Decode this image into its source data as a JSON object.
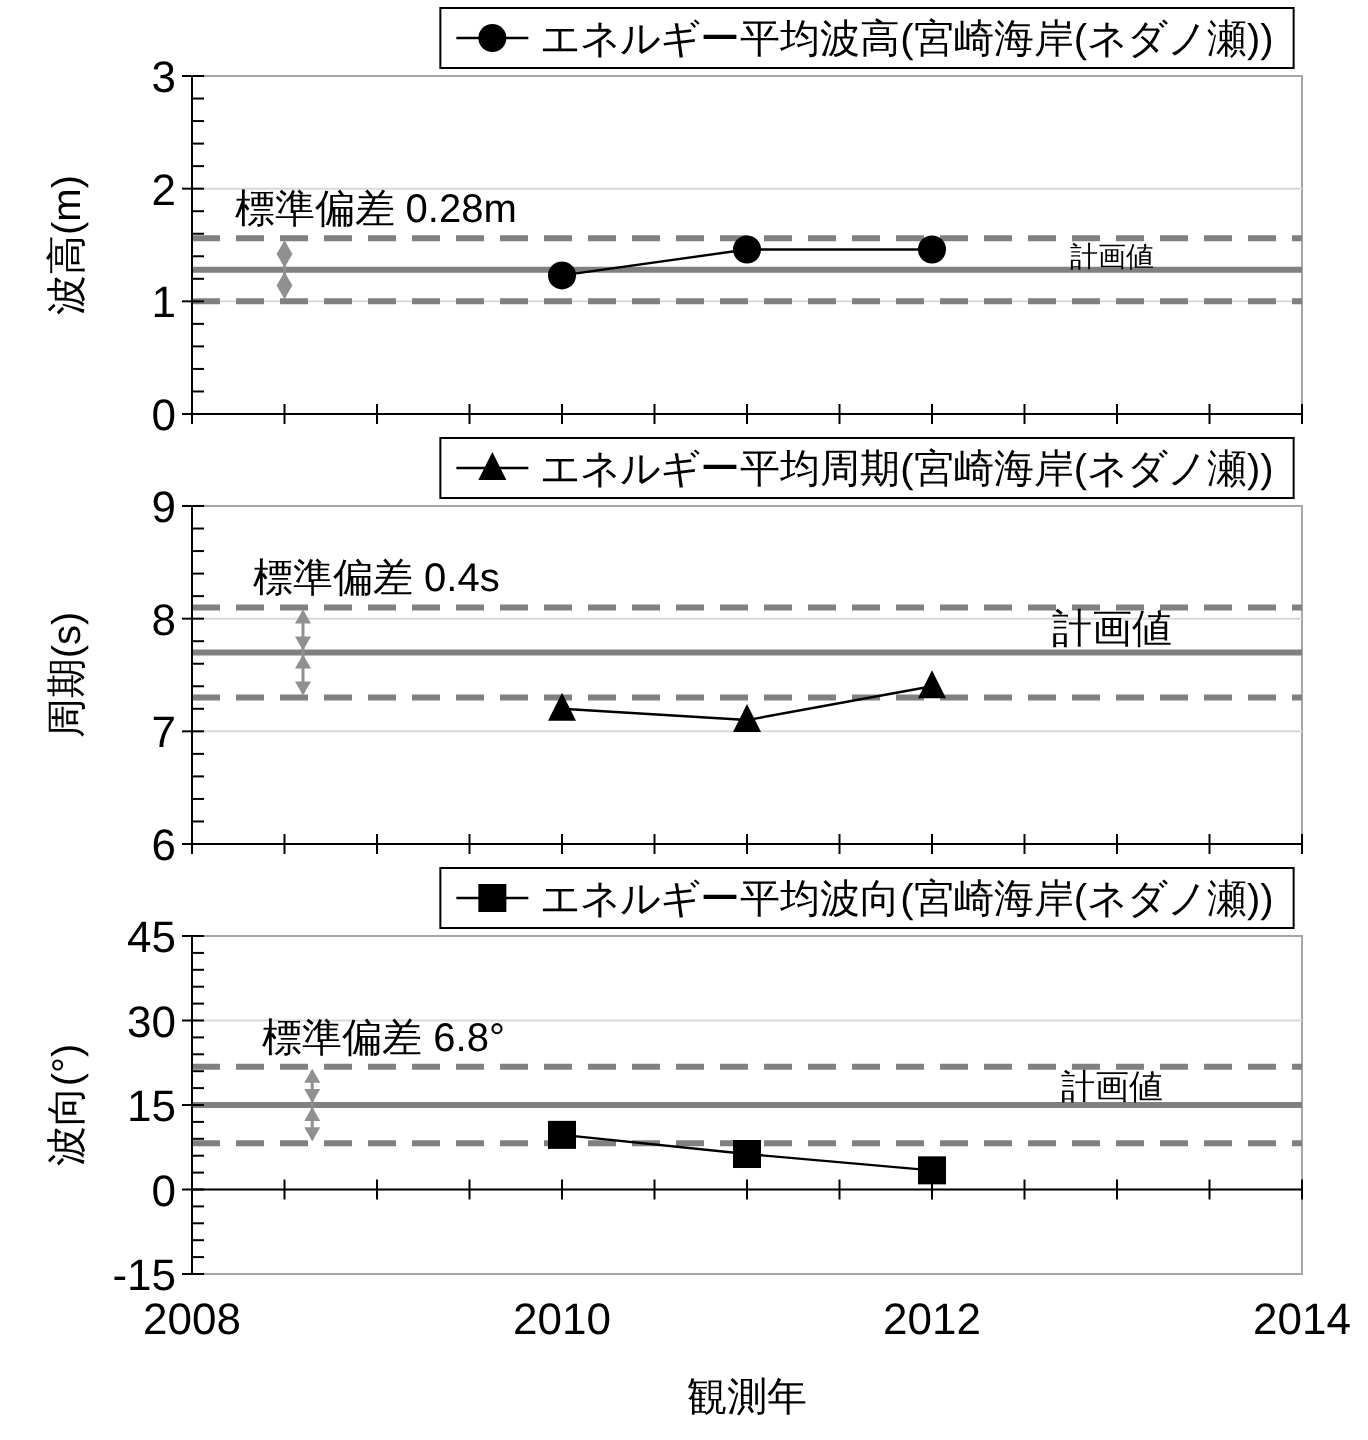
{
  "chart_data": [
    {
      "type": "line",
      "ylabel": "波高(m)",
      "x": [
        2010,
        2011,
        2012
      ],
      "series": [
        {
          "name": "エネルギー平均波高(宮崎海岸(ネダノ瀬))",
          "color": "#000000",
          "values": [
            1.23,
            1.46,
            1.46
          ]
        }
      ],
      "marker": "circle",
      "line_style": "solid",
      "legend": "top",
      "grid": "y",
      "tick_labels": "y",
      "xlim": [
        2008,
        2014
      ],
      "xticks": [
        2008,
        {
          "value": 2008.5,
          "label": null
        },
        {
          "value": 2009,
          "label": null
        },
        {
          "value": 2009.5,
          "label": null
        },
        2010,
        {
          "value": 2010.5,
          "label": null
        },
        {
          "value": 2011,
          "label": null
        },
        {
          "value": 2011.5,
          "label": null
        },
        2012,
        {
          "value": 2012.5,
          "label": null
        },
        {
          "value": 2013,
          "label": null
        },
        {
          "value": 2013.5,
          "label": null
        },
        2014
      ],
      "ylim": [
        0,
        3
      ],
      "yticks": [
        0,
        {
          "value": 0.2,
          "label": null
        },
        {
          "value": 0.4,
          "label": null
        },
        {
          "value": 0.6,
          "label": null
        },
        {
          "value": 0.8,
          "label": null
        },
        1,
        {
          "value": 1.2,
          "label": null
        },
        {
          "value": 1.4,
          "label": null
        },
        {
          "value": 1.6,
          "label": null
        },
        {
          "value": 1.8,
          "label": null
        },
        2,
        {
          "value": 2.2,
          "label": null
        },
        {
          "value": 2.4,
          "label": null
        },
        {
          "value": 2.6,
          "label": null
        },
        {
          "value": 2.8,
          "label": null
        },
        3
      ],
      "ref_lines": [
        {
          "axis": "y",
          "value": 1.28,
          "label": "計画値",
          "color": "#808080",
          "line_style": "solid"
        },
        {
          "axis": "y",
          "value": 1.56,
          "color": "#808080",
          "line_style": "dashed"
        },
        {
          "axis": "y",
          "value": 1.0,
          "color": "#808080",
          "line_style": "dashed"
        }
      ],
      "annotations": [
        {
          "text": "標準偏差 0.28m",
          "x": 2008.5,
          "y": 1.56
        }
      ]
    },
    {
      "type": "line",
      "ylabel": "周期(s)",
      "x": [
        2010,
        2011,
        2012
      ],
      "series": [
        {
          "name": "エネルギー平均周期(宮崎海岸(ネダノ瀬))",
          "color": "#000000",
          "values": [
            7.2,
            7.1,
            7.4
          ]
        }
      ],
      "marker": "triangle",
      "line_style": "solid",
      "legend": "top",
      "grid": "y",
      "tick_labels": "y",
      "xlim": [
        2008,
        2014
      ],
      "xticks": [
        2008,
        {
          "value": 2008.5,
          "label": null
        },
        {
          "value": 2009,
          "label": null
        },
        {
          "value": 2009.5,
          "label": null
        },
        2010,
        {
          "value": 2010.5,
          "label": null
        },
        {
          "value": 2011,
          "label": null
        },
        {
          "value": 2011.5,
          "label": null
        },
        2012,
        {
          "value": 2012.5,
          "label": null
        },
        {
          "value": 2013,
          "label": null
        },
        {
          "value": 2013.5,
          "label": null
        },
        2014
      ],
      "ylim": [
        6,
        9
      ],
      "yticks": [
        6,
        {
          "value": 6.2,
          "label": null
        },
        {
          "value": 6.4,
          "label": null
        },
        {
          "value": 6.6,
          "label": null
        },
        {
          "value": 6.8,
          "label": null
        },
        7,
        {
          "value": 7.2,
          "label": null
        },
        {
          "value": 7.4,
          "label": null
        },
        {
          "value": 7.6,
          "label": null
        },
        {
          "value": 7.8,
          "label": null
        },
        8,
        {
          "value": 8.2,
          "label": null
        },
        {
          "value": 8.4,
          "label": null
        },
        {
          "value": 8.6,
          "label": null
        },
        {
          "value": 8.8,
          "label": null
        },
        9
      ],
      "ref_lines": [
        {
          "axis": "y",
          "value": 7.7,
          "label": "計画値",
          "color": "#808080",
          "line_style": "solid"
        },
        {
          "axis": "y",
          "value": 8.1,
          "color": "#808080",
          "line_style": "dashed"
        },
        {
          "axis": "y",
          "value": 7.3,
          "color": "#808080",
          "line_style": "dashed"
        }
      ],
      "annotations": [
        {
          "text": "標準偏差 0.4s",
          "x": 2008.6,
          "y": 8.1
        }
      ]
    },
    {
      "type": "line",
      "ylabel": "波向(°)",
      "xlabel": "観測年",
      "x": [
        2010,
        2011,
        2012
      ],
      "series": [
        {
          "name": "エネルギー平均波向(宮崎海岸(ネダノ瀬))",
          "color": "#000000",
          "values": [
            9.7,
            6.3,
            3.4
          ]
        }
      ],
      "marker": "square",
      "line_style": "solid",
      "legend": "top",
      "grid": "y",
      "xlim": [
        2008,
        2014
      ],
      "xticks": [
        2008,
        {
          "value": 2008.5,
          "label": null
        },
        {
          "value": 2009,
          "label": null
        },
        {
          "value": 2009.5,
          "label": null
        },
        2010,
        {
          "value": 2010.5,
          "label": null
        },
        {
          "value": 2011,
          "label": null
        },
        {
          "value": 2011.5,
          "label": null
        },
        2012,
        {
          "value": 2012.5,
          "label": null
        },
        {
          "value": 2013,
          "label": null
        },
        {
          "value": 2013.5,
          "label": null
        },
        2014
      ],
      "ylim": [
        -15,
        45
      ],
      "yticks": [
        -15,
        {
          "value": -12,
          "label": null
        },
        {
          "value": -9,
          "label": null
        },
        {
          "value": -6,
          "label": null
        },
        {
          "value": -3,
          "label": null
        },
        0,
        {
          "value": 3,
          "label": null
        },
        {
          "value": 6,
          "label": null
        },
        {
          "value": 9,
          "label": null
        },
        {
          "value": 12,
          "label": null
        },
        15,
        {
          "value": 18,
          "label": null
        },
        {
          "value": 21,
          "label": null
        },
        {
          "value": 24,
          "label": null
        },
        {
          "value": 27,
          "label": null
        },
        30,
        {
          "value": 33,
          "label": null
        },
        {
          "value": 36,
          "label": null
        },
        {
          "value": 39,
          "label": null
        },
        {
          "value": 42,
          "label": null
        },
        45
      ],
      "ref_lines": [
        {
          "axis": "y",
          "value": 15,
          "label": "計画値",
          "color": "#808080",
          "line_style": "solid"
        },
        {
          "axis": "y",
          "value": 21.8,
          "color": "#808080",
          "line_style": "dashed"
        },
        {
          "axis": "y",
          "value": 8.2,
          "color": "#808080",
          "line_style": "dashed"
        }
      ],
      "annotations": [
        {
          "text": "標準偏差 6.8°",
          "x": 2008.65,
          "y": 21.8
        }
      ]
    }
  ]
}
